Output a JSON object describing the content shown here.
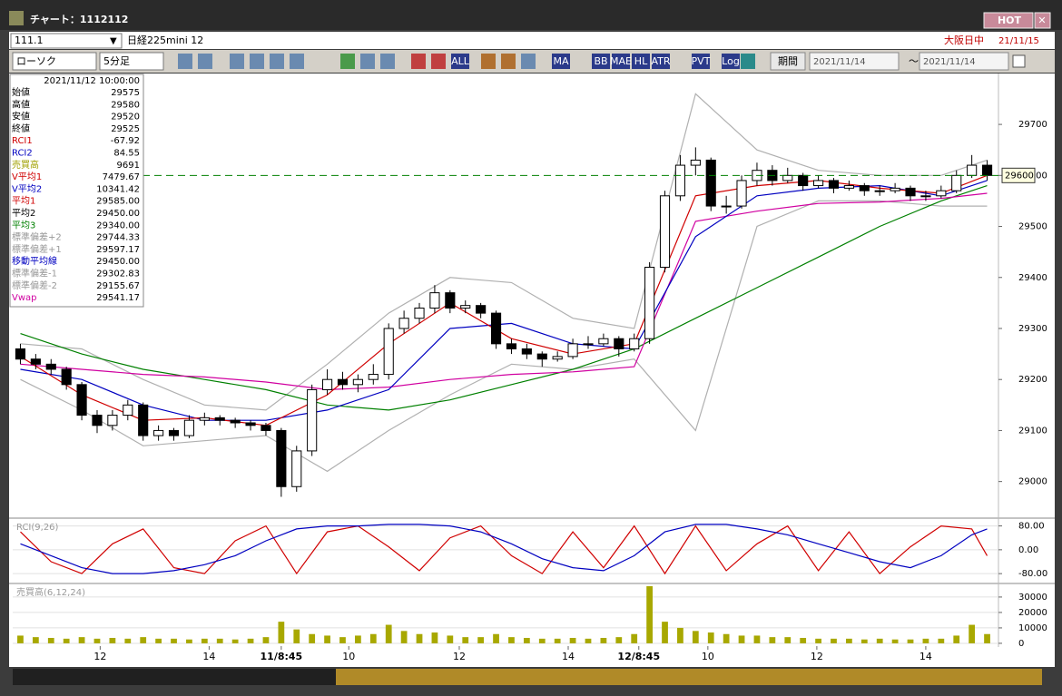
{
  "window": {
    "title": "チャート：1112112",
    "hot": "HOT"
  },
  "header": {
    "code": "111.1",
    "name": "日経225mini 12",
    "session": "大阪日中",
    "date": "21/11/15"
  },
  "toolbar": {
    "chart_kind": "ローソク",
    "interval": "5分足",
    "buttons": [
      "ALL",
      "MA",
      "BB",
      "MAE",
      "HL",
      "ATR",
      "PVT",
      "Log"
    ],
    "period": "期間",
    "from": "2021/11/14",
    "tilde": "〜",
    "to": "2021/11/14"
  },
  "info": {
    "time": "2021/11/12 10:00:00",
    "rows": [
      {
        "label": "始値",
        "value": "29575",
        "color": "#000000"
      },
      {
        "label": "高値",
        "value": "29580",
        "color": "#000000"
      },
      {
        "label": "安値",
        "value": "29520",
        "color": "#000000"
      },
      {
        "label": "終値",
        "value": "29525",
        "color": "#000000"
      },
      {
        "label": "RCI1",
        "value": "-67.92",
        "color": "#d00000"
      },
      {
        "label": "RCI2",
        "value": "84.55",
        "color": "#0000c0"
      },
      {
        "label": "売買高",
        "value": "9691",
        "color": "#a0a000"
      },
      {
        "label": "V平均1",
        "value": "7479.67",
        "color": "#d00000"
      },
      {
        "label": "V平均2",
        "value": "10341.42",
        "color": "#0000c0"
      },
      {
        "label": "平均1",
        "value": "29585.00",
        "color": "#d00000"
      },
      {
        "label": "平均2",
        "value": "29450.00",
        "color": "#000000"
      },
      {
        "label": "平均3",
        "value": "29340.00",
        "color": "#008000"
      },
      {
        "label": "標準偏差+2",
        "value": "29744.33",
        "color": "#999999"
      },
      {
        "label": "標準偏差+1",
        "value": "29597.17",
        "color": "#999999"
      },
      {
        "label": "移動平均線",
        "value": "29450.00",
        "color": "#0000c0"
      },
      {
        "label": "標準偏差-1",
        "value": "29302.83",
        "color": "#999999"
      },
      {
        "label": "標準偏差-2",
        "value": "29155.67",
        "color": "#999999"
      },
      {
        "label": "Vwap",
        "value": "29541.17",
        "color": "#d000a0"
      }
    ]
  },
  "chart_data": [
    {
      "type": "candlestick",
      "last_price": 29600,
      "last_color": "#008000",
      "ylim": [
        28930,
        29798
      ],
      "yticks": [
        29000,
        29100,
        29200,
        29300,
        29400,
        29500,
        29600,
        29700
      ],
      "xlim": [
        -0.5,
        63.5
      ],
      "xticks": [
        {
          "value": 5.2,
          "label": "12"
        },
        {
          "value": 12.3,
          "label": "14"
        },
        {
          "value": 17.0,
          "label": "11/8:45"
        },
        {
          "value": 21.4,
          "label": "10"
        },
        {
          "value": 28.6,
          "label": "12"
        },
        {
          "value": 35.7,
          "label": "14"
        },
        {
          "value": 40.3,
          "label": "12/8:45"
        },
        {
          "value": 44.8,
          "label": "10"
        },
        {
          "value": 51.9,
          "label": "12"
        },
        {
          "value": 59.0,
          "label": "14"
        }
      ],
      "candles": [
        [
          29260,
          29270,
          29230,
          29240
        ],
        [
          29240,
          29250,
          29220,
          29230
        ],
        [
          29230,
          29240,
          29210,
          29220
        ],
        [
          29220,
          29225,
          29180,
          29190
        ],
        [
          29190,
          29195,
          29120,
          29130
        ],
        [
          29130,
          29140,
          29095,
          29110
        ],
        [
          29110,
          29140,
          29100,
          29130
        ],
        [
          29130,
          29160,
          29120,
          29150
        ],
        [
          29150,
          29155,
          29080,
          29090
        ],
        [
          29090,
          29110,
          29080,
          29100
        ],
        [
          29100,
          29105,
          29080,
          29090
        ],
        [
          29090,
          29130,
          29085,
          29120
        ],
        [
          29120,
          29135,
          29110,
          29125
        ],
        [
          29125,
          29130,
          29110,
          29120
        ],
        [
          29120,
          29125,
          29105,
          29115
        ],
        [
          29115,
          29120,
          29100,
          29110
        ],
        [
          29110,
          29115,
          29090,
          29100
        ],
        [
          29100,
          29105,
          28970,
          28990
        ],
        [
          28990,
          29070,
          28980,
          29060
        ],
        [
          29060,
          29190,
          29050,
          29180
        ],
        [
          29180,
          29220,
          29170,
          29200
        ],
        [
          29200,
          29215,
          29180,
          29190
        ],
        [
          29190,
          29210,
          29175,
          29200
        ],
        [
          29200,
          29230,
          29190,
          29210
        ],
        [
          29210,
          29310,
          29200,
          29300
        ],
        [
          29300,
          29335,
          29290,
          29320
        ],
        [
          29320,
          29350,
          29310,
          29340
        ],
        [
          29340,
          29385,
          29330,
          29370
        ],
        [
          29370,
          29375,
          29330,
          29340
        ],
        [
          29340,
          29355,
          29330,
          29345
        ],
        [
          29345,
          29350,
          29320,
          29330
        ],
        [
          29330,
          29335,
          29260,
          29270
        ],
        [
          29270,
          29280,
          29250,
          29260
        ],
        [
          29260,
          29270,
          29240,
          29250
        ],
        [
          29250,
          29255,
          29225,
          29240
        ],
        [
          29240,
          29255,
          29235,
          29245
        ],
        [
          29245,
          29280,
          29240,
          29270
        ],
        [
          29270,
          29285,
          29260,
          29270
        ],
        [
          29270,
          29290,
          29265,
          29280
        ],
        [
          29280,
          29285,
          29245,
          29260
        ],
        [
          29260,
          29290,
          29255,
          29280
        ],
        [
          29280,
          29430,
          29270,
          29420
        ],
        [
          29420,
          29570,
          29410,
          29560
        ],
        [
          29560,
          29640,
          29550,
          29620
        ],
        [
          29620,
          29655,
          29600,
          29630
        ],
        [
          29630,
          29635,
          29530,
          29540
        ],
        [
          29540,
          29560,
          29525,
          29540
        ],
        [
          29540,
          29600,
          29535,
          29590
        ],
        [
          29590,
          29625,
          29580,
          29610
        ],
        [
          29610,
          29620,
          29580,
          29590
        ],
        [
          29590,
          29615,
          29585,
          29600
        ],
        [
          29600,
          29605,
          29570,
          29580
        ],
        [
          29580,
          29600,
          29575,
          29590
        ],
        [
          29590,
          29595,
          29565,
          29575
        ],
        [
          29575,
          29590,
          29570,
          29580
        ],
        [
          29580,
          29585,
          29560,
          29570
        ],
        [
          29570,
          29580,
          29560,
          29570
        ],
        [
          29570,
          29585,
          29565,
          29575
        ],
        [
          29575,
          29580,
          29550,
          29560
        ],
        [
          29560,
          29570,
          29550,
          29560
        ],
        [
          29560,
          29580,
          29555,
          29570
        ],
        [
          29570,
          29610,
          29565,
          29600
        ],
        [
          29600,
          29640,
          29595,
          29620
        ],
        [
          29620,
          29630,
          29590,
          29600
        ]
      ],
      "x": [
        0,
        4,
        8,
        12,
        16,
        20,
        24,
        28,
        32,
        36,
        40,
        44,
        48,
        52,
        56,
        60,
        63
      ],
      "series": [
        {
          "name": "標準偏差+2",
          "color": "#b0b0b0",
          "values": [
            29270,
            29260,
            29200,
            29150,
            29140,
            29230,
            29330,
            29400,
            29390,
            29320,
            29300,
            29760,
            29650,
            29610,
            29600,
            29600,
            29630
          ]
        },
        {
          "name": "標準偏差-2",
          "color": "#b0b0b0",
          "values": [
            29200,
            29140,
            29070,
            29080,
            29090,
            29020,
            29100,
            29170,
            29230,
            29220,
            29240,
            29100,
            29500,
            29550,
            29550,
            29540,
            29540
          ]
        },
        {
          "name": "平均3",
          "color": "#008000",
          "values": [
            29290,
            29250,
            29220,
            29200,
            29180,
            29150,
            29140,
            29160,
            29190,
            29220,
            29260,
            29320,
            29380,
            29440,
            29500,
            29550,
            29580
          ]
        },
        {
          "name": "Vwap",
          "color": "#d000a0",
          "values": [
            29230,
            29220,
            29210,
            29205,
            29195,
            29180,
            29185,
            29200,
            29210,
            29215,
            29225,
            29510,
            29530,
            29545,
            29548,
            29555,
            29565
          ]
        },
        {
          "name": "移動平均線",
          "color": "#0000c0",
          "values": [
            29220,
            29200,
            29150,
            29120,
            29120,
            29140,
            29180,
            29300,
            29310,
            29270,
            29260,
            29480,
            29560,
            29575,
            29580,
            29560,
            29590
          ]
        },
        {
          "name": "平均1",
          "color": "#d00000",
          "values": [
            29245,
            29170,
            29120,
            29125,
            29110,
            29170,
            29270,
            29350,
            29280,
            29250,
            29270,
            29560,
            29580,
            29590,
            29575,
            29565,
            29600
          ]
        }
      ]
    },
    {
      "type": "line",
      "title": "RCI(9,26)",
      "ylim": [
        -110,
        100
      ],
      "yticks": [
        {
          "value": 80,
          "label": "80.00"
        },
        {
          "value": 0,
          "label": "0.00"
        },
        {
          "value": -80,
          "label": "-80.00"
        }
      ],
      "x": [
        0,
        2,
        4,
        6,
        8,
        10,
        12,
        14,
        16,
        18,
        20,
        22,
        24,
        26,
        28,
        30,
        32,
        34,
        36,
        38,
        40,
        42,
        44,
        46,
        48,
        50,
        52,
        54,
        56,
        58,
        60,
        62,
        63
      ],
      "series": [
        {
          "name": "RCI1",
          "color": "#d00000",
          "values": [
            60,
            -40,
            -80,
            20,
            70,
            -60,
            -80,
            30,
            80,
            -80,
            60,
            80,
            10,
            -70,
            40,
            80,
            -20,
            -80,
            60,
            -60,
            80,
            -80,
            80,
            -70,
            20,
            80,
            -70,
            60,
            -80,
            10,
            80,
            70,
            -20
          ]
        },
        {
          "name": "RCI2",
          "color": "#0000c0",
          "values": [
            20,
            -20,
            -60,
            -80,
            -80,
            -70,
            -50,
            -20,
            30,
            70,
            80,
            80,
            85,
            85,
            80,
            60,
            20,
            -30,
            -60,
            -70,
            -20,
            60,
            85,
            85,
            70,
            50,
            20,
            -10,
            -40,
            -60,
            -20,
            50,
            70
          ]
        }
      ]
    },
    {
      "type": "bar",
      "title": "売買高(6,12,24)",
      "color": "#a8a800",
      "ylim": [
        -1800,
        37600
      ],
      "yticks": [
        0,
        10000,
        20000,
        30000
      ],
      "values": [
        5000,
        4000,
        3500,
        3000,
        4000,
        3000,
        3500,
        3000,
        4000,
        3000,
        3000,
        2500,
        3000,
        3000,
        2500,
        3000,
        4000,
        14000,
        9000,
        6000,
        5000,
        4000,
        5000,
        6000,
        12000,
        8000,
        6000,
        7000,
        5000,
        4000,
        4000,
        6000,
        4000,
        3500,
        3000,
        3000,
        3500,
        3000,
        3500,
        4000,
        6000,
        37000,
        14000,
        10000,
        8000,
        7000,
        6000,
        5000,
        5000,
        4000,
        4000,
        3500,
        3000,
        3000,
        3000,
        2500,
        3000,
        2500,
        2500,
        3000,
        3000,
        5000,
        12000,
        6000
      ]
    }
  ]
}
